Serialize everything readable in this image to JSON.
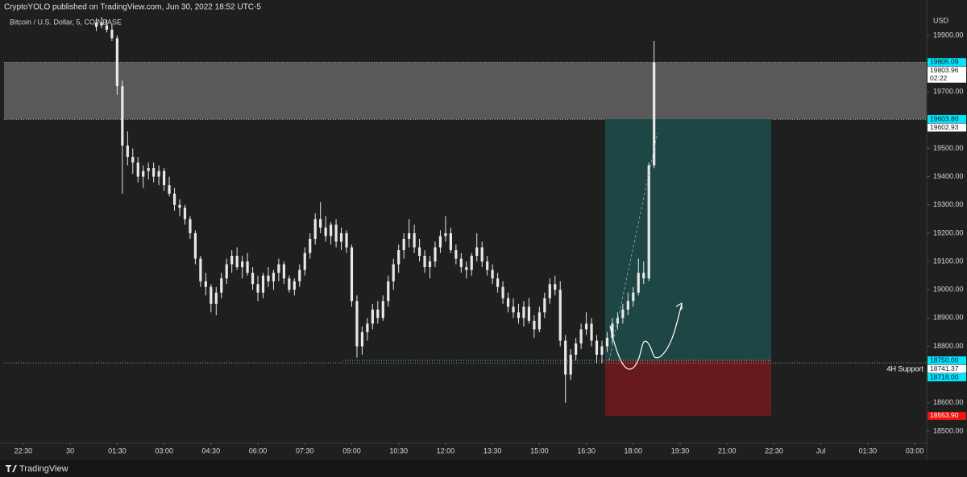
{
  "header": "CryptoYOLO published on TradingView.com, Jun 30, 2022 18:52 UTC-5",
  "footer": "TradingView",
  "chart_data": {
    "type": "candlestick",
    "title": "Bitcoin / U.S. Dollar, 5, COINBASE",
    "currency": "USD",
    "color": "#e8e8e8",
    "open": [
      19930,
      19945,
      19935,
      19920,
      19890,
      19720,
      19510,
      19470,
      19450,
      19400,
      19420,
      19430,
      19400,
      19420,
      19370,
      19340,
      19300,
      19290,
      19250,
      19200,
      19110,
      19030,
      19010,
      18950,
      18990,
      19040,
      19090,
      19120,
      19080,
      19100,
      19060,
      19020,
      18990,
      19050,
      19030,
      19060,
      19090,
      19040,
      19000,
      19030,
      19070,
      19130,
      19180,
      19250,
      19220,
      19190,
      19230,
      19170,
      19200,
      19150,
      18960,
      18800,
      18850,
      18880,
      18930,
      18900,
      18960,
      19030,
      19090,
      19140,
      19180,
      19200,
      19150,
      19120,
      19080,
      19100,
      19150,
      19190,
      19200,
      19140,
      19110,
      19080,
      19070,
      19120,
      19150,
      19100,
      19070,
      19040,
      19010,
      18970,
      18940,
      18920,
      18900,
      18940,
      18890,
      18860,
      18920,
      18970,
      19020,
      19000,
      18820,
      18700,
      18770,
      18810,
      18860,
      18880,
      18820,
      18770,
      18800,
      18830,
      18880,
      18900,
      18930,
      18960,
      18990,
      19060,
      19040,
      19440
    ],
    "high": [
      19960,
      19965,
      19955,
      19940,
      19900,
      19740,
      19560,
      19500,
      19470,
      19440,
      19450,
      19450,
      19440,
      19430,
      19400,
      19360,
      19320,
      19300,
      19260,
      19210,
      19120,
      19060,
      19020,
      19010,
      19060,
      19110,
      19140,
      19150,
      19120,
      19130,
      19080,
      19050,
      19060,
      19080,
      19070,
      19110,
      19100,
      19050,
      19040,
      19090,
      19150,
      19200,
      19270,
      19310,
      19260,
      19240,
      19250,
      19220,
      19210,
      19160,
      18980,
      18870,
      18900,
      18950,
      18960,
      18980,
      19050,
      19110,
      19160,
      19200,
      19250,
      19230,
      19180,
      19140,
      19120,
      19170,
      19210,
      19260,
      19220,
      19160,
      19130,
      19100,
      19130,
      19200,
      19170,
      19120,
      19090,
      19060,
      19030,
      18990,
      18970,
      18950,
      18960,
      18970,
      18910,
      18940,
      18990,
      19040,
      19050,
      19030,
      18840,
      18790,
      18830,
      18880,
      18920,
      18900,
      18840,
      18820,
      18850,
      18900,
      18920,
      18950,
      18990,
      19010,
      19110,
      19100,
      19450,
      19880
    ],
    "low": [
      19915,
      19925,
      19910,
      19880,
      19690,
      19340,
      19440,
      19410,
      19380,
      19360,
      19390,
      19380,
      19370,
      19350,
      19330,
      19280,
      19260,
      19230,
      19180,
      19090,
      19010,
      18980,
      18920,
      18910,
      18970,
      19020,
      19060,
      19070,
      19040,
      19050,
      19000,
      18960,
      18970,
      19010,
      19000,
      19030,
      19020,
      18990,
      18980,
      19010,
      19050,
      19110,
      19160,
      19200,
      19170,
      19160,
      19150,
      19140,
      19130,
      18940,
      18760,
      18770,
      18820,
      18860,
      18880,
      18890,
      18940,
      19000,
      19060,
      19110,
      19150,
      19130,
      19100,
      19060,
      19040,
      19080,
      19130,
      19170,
      19130,
      19090,
      19060,
      19040,
      19050,
      19100,
      19080,
      19050,
      19020,
      18990,
      18950,
      18920,
      18900,
      18880,
      18870,
      18880,
      18830,
      18850,
      18900,
      18950,
      18980,
      18800,
      18600,
      18680,
      18750,
      18790,
      18840,
      18800,
      18740,
      18740,
      18780,
      18810,
      18860,
      18880,
      18910,
      18940,
      18980,
      19020,
      19030,
      19430
    ],
    "close": [
      19945,
      19935,
      19920,
      19890,
      19720,
      19510,
      19470,
      19450,
      19400,
      19420,
      19430,
      19400,
      19420,
      19370,
      19340,
      19300,
      19290,
      19250,
      19200,
      19110,
      19030,
      19010,
      18950,
      18990,
      19040,
      19090,
      19120,
      19080,
      19100,
      19060,
      19020,
      18990,
      19050,
      19030,
      19060,
      19090,
      19040,
      19000,
      19030,
      19070,
      19130,
      19180,
      19250,
      19220,
      19190,
      19230,
      19170,
      19200,
      19150,
      18960,
      18800,
      18850,
      18880,
      18930,
      18900,
      18960,
      19030,
      19090,
      19140,
      19180,
      19200,
      19150,
      19120,
      19080,
      19100,
      19150,
      19190,
      19200,
      19140,
      19110,
      19080,
      19070,
      19120,
      19150,
      19100,
      19070,
      19040,
      19010,
      18970,
      18940,
      18920,
      18900,
      18940,
      18890,
      18860,
      18920,
      18970,
      19020,
      19000,
      18820,
      18700,
      18770,
      18810,
      18860,
      18880,
      18820,
      18770,
      18800,
      18830,
      18880,
      18900,
      18930,
      18960,
      18990,
      19060,
      19040,
      19440,
      19803.96
    ],
    "xlim": [
      -17.7,
      159.3
    ],
    "xticks": [
      {
        "value": -14,
        "label": "22:30"
      },
      {
        "value": -5,
        "label": "30"
      },
      {
        "value": 4,
        "label": "01:30"
      },
      {
        "value": 13,
        "label": "03:00"
      },
      {
        "value": 22,
        "label": "04:30"
      },
      {
        "value": 31,
        "label": "06:00"
      },
      {
        "value": 40,
        "label": "07:30"
      },
      {
        "value": 49,
        "label": "09:00"
      },
      {
        "value": 58,
        "label": "10:30"
      },
      {
        "value": 67,
        "label": "12:00"
      },
      {
        "value": 76,
        "label": "13:30"
      },
      {
        "value": 85,
        "label": "15:00"
      },
      {
        "value": 94,
        "label": "16:30"
      },
      {
        "value": 103,
        "label": "18:00"
      },
      {
        "value": 112,
        "label": "19:30"
      },
      {
        "value": 121,
        "label": "21:00"
      },
      {
        "value": 130,
        "label": "22:30"
      },
      {
        "value": 139,
        "label": "Jul"
      },
      {
        "value": 148,
        "label": "01:30"
      },
      {
        "value": 157,
        "label": "03:00"
      }
    ],
    "ylim": [
      18460,
      19968
    ],
    "yticks": [
      {
        "value": 18500,
        "label": "18500.00"
      },
      {
        "value": 18600,
        "label": "18600.00"
      },
      {
        "value": 18700,
        "label": "18700.00"
      },
      {
        "value": 18800,
        "label": "18800.00"
      },
      {
        "value": 18900,
        "label": "18900.00"
      },
      {
        "value": 19000,
        "label": "19000.00"
      },
      {
        "value": 19100,
        "label": "19100.00"
      },
      {
        "value": 19200,
        "label": "19200.00"
      },
      {
        "value": 19300,
        "label": "19300.00"
      },
      {
        "value": 19400,
        "label": "19400.00"
      },
      {
        "value": 19500,
        "label": "19500.00"
      },
      {
        "value": 19600,
        "label": "19600.00"
      },
      {
        "value": 19700,
        "label": "19700.00"
      },
      {
        "value": 19800,
        "label": "19800.00"
      },
      {
        "value": 19900,
        "label": "19900.00"
      }
    ],
    "zone": {
      "from": 19602.93,
      "to": 19805.09,
      "color": "#5f5f5f"
    },
    "position": {
      "entry": 18750,
      "target": 19603.8,
      "stop": 18553.9,
      "profit_color": "#1e4a48",
      "loss_color": "#6b1a1c"
    },
    "support": {
      "price": 18741.37,
      "label": "4H Support"
    },
    "price_labels": [
      {
        "value": 19805.09,
        "color": "#00e5ff"
      },
      {
        "value": 19803.96,
        "color": "#ffffff",
        "countdown": "02:22"
      },
      {
        "value": 19603.8,
        "label": "19603.80",
        "color": "#00e5ff"
      },
      {
        "value": 19602.93,
        "color": "#ffffff"
      },
      {
        "value": 18750,
        "label": "18750.00",
        "color": "#00e5ff"
      },
      {
        "value": 18741.37,
        "color": "#ffffff"
      },
      {
        "value": 18718,
        "label": "18718.00",
        "color": "#00e5ff"
      },
      {
        "value": 18553.9,
        "label": "18553.90",
        "color": "#f0140f"
      }
    ]
  }
}
